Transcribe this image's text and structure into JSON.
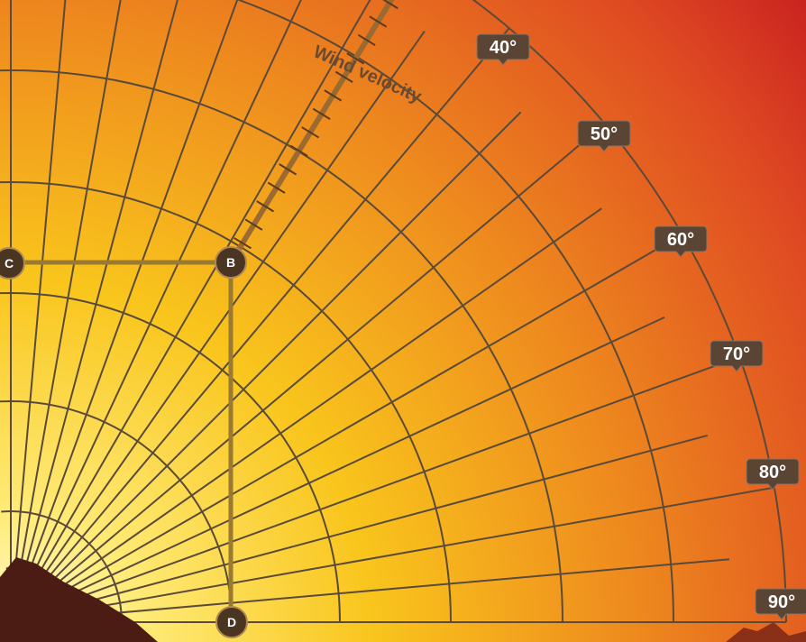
{
  "diagram": {
    "axis_label": "Wind velocity",
    "angle_labels": [
      "40°",
      "50°",
      "60°",
      "70°",
      "80°",
      "90°"
    ],
    "points": [
      "B",
      "C",
      "D"
    ]
  }
}
